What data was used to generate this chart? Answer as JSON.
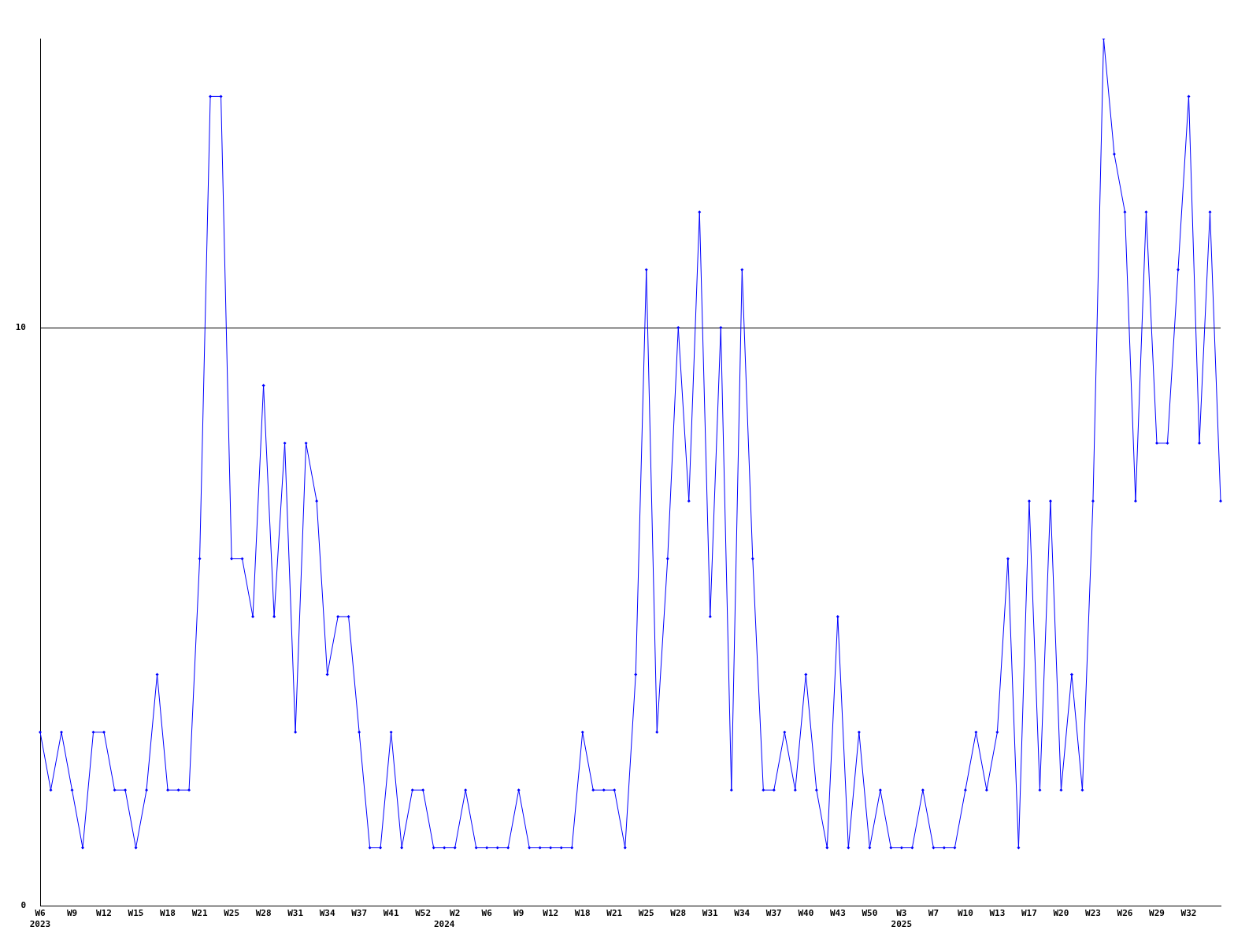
{
  "chart_data": {
    "type": "line",
    "categories": [
      "W6\n2023",
      null,
      null,
      "W9",
      null,
      null,
      "W12",
      null,
      null,
      "W15",
      null,
      null,
      "W18",
      null,
      null,
      "W21",
      null,
      null,
      "W25",
      null,
      null,
      "W28",
      null,
      null,
      "W31",
      null,
      null,
      "W34",
      null,
      null,
      "W37",
      null,
      null,
      "W41",
      null,
      null,
      "W52",
      null,
      "\n2024",
      "W2",
      null,
      null,
      "W6",
      null,
      null,
      "W9",
      null,
      null,
      "W12",
      null,
      null,
      "W18",
      null,
      null,
      "W21",
      null,
      null,
      "W25",
      null,
      null,
      "W28",
      null,
      null,
      "W31",
      null,
      null,
      "W34",
      null,
      null,
      "W37",
      null,
      null,
      "W40",
      null,
      null,
      "W43",
      null,
      null,
      "W50",
      null,
      null,
      "W3\n2025",
      null,
      null,
      "W7",
      null,
      null,
      "W10",
      null,
      null,
      "W13",
      null,
      null,
      "W17",
      null,
      null,
      "W20",
      null,
      null,
      "W23",
      null,
      null,
      "W26",
      null,
      null,
      "W29",
      null,
      null,
      "W32",
      null,
      null,
      null
    ],
    "series": [
      {
        "color": "#0000ff",
        "values": [
          3,
          2,
          3,
          2,
          1,
          3,
          3,
          2,
          2,
          1,
          2,
          4,
          2,
          2,
          2,
          6,
          14,
          14,
          6,
          6,
          5,
          9,
          5,
          8,
          3,
          8,
          7,
          4,
          5,
          5,
          3,
          1,
          1,
          3,
          1,
          2,
          2,
          1,
          1,
          1,
          2,
          1,
          1,
          1,
          1,
          2,
          1,
          1,
          1,
          1,
          1,
          3,
          2,
          2,
          2,
          1,
          4,
          11,
          3,
          6,
          10,
          7,
          12,
          5,
          10,
          2,
          11,
          6,
          2,
          2,
          3,
          2,
          4,
          2,
          1,
          5,
          1,
          3,
          1,
          2,
          1,
          1,
          1,
          2,
          1,
          1,
          1,
          2,
          3,
          2,
          3,
          6,
          1,
          7,
          2,
          7,
          2,
          4,
          2,
          7,
          15,
          13,
          12,
          7,
          12,
          8,
          8,
          11,
          14,
          8,
          12,
          7
        ]
      }
    ],
    "ylim": [
      0,
      15
    ],
    "yticks": [
      0,
      10
    ],
    "grid": "y",
    "marker": "diamond"
  }
}
